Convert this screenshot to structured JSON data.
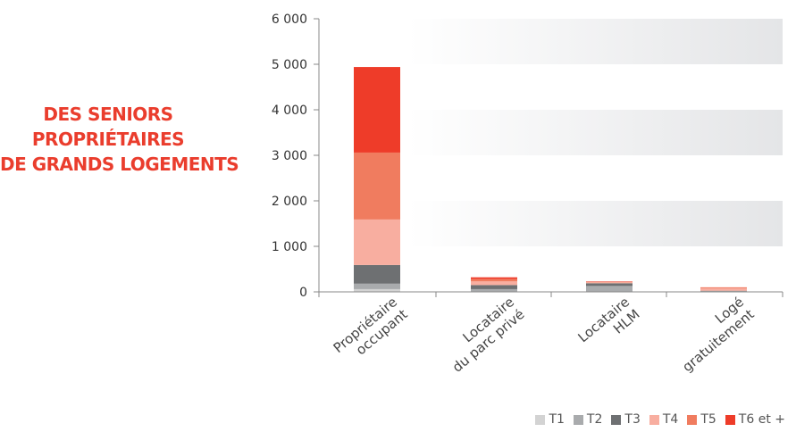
{
  "headline": {
    "line1": "DES SENIORS",
    "line2": "PROPRIÉTAIRES",
    "line3": "DE GRANDS LOGEMENTS"
  },
  "colors": {
    "accent": "#ea3d2d",
    "T1": "#d3d3d3",
    "T2": "#a9abad",
    "T3": "#6e7072",
    "T4": "#f8aea0",
    "T5": "#f07c5f",
    "T6": "#ee3c29"
  },
  "chart_data": {
    "type": "bar",
    "stacked": true,
    "categories": [
      [
        "Propriétaire",
        "occupant"
      ],
      [
        "Locataire",
        "du parc privé"
      ],
      [
        "Locataire",
        "HLM"
      ],
      [
        "Logé",
        "gratuitement"
      ]
    ],
    "series": [
      {
        "name": "T1",
        "color": "#d3d3d3",
        "values": [
          60,
          10,
          10,
          5
        ]
      },
      {
        "name": "T2",
        "color": "#a9abad",
        "values": [
          120,
          50,
          120,
          10
        ]
      },
      {
        "name": "T3",
        "color": "#6e7072",
        "values": [
          410,
          90,
          60,
          10
        ]
      },
      {
        "name": "T4",
        "color": "#f8aea0",
        "values": [
          1000,
          80,
          20,
          50
        ]
      },
      {
        "name": "T5",
        "color": "#f07c5f",
        "values": [
          1470,
          50,
          10,
          20
        ]
      },
      {
        "name": "T6 et +",
        "color": "#ee3c29",
        "values": [
          1880,
          40,
          10,
          5
        ]
      }
    ],
    "ylim": [
      0,
      6000
    ],
    "yticks": [
      0,
      1000,
      2000,
      3000,
      4000,
      5000,
      6000
    ],
    "ytick_labels": [
      "0",
      "1 000",
      "2 000",
      "3 000",
      "4 000",
      "5 000",
      "6 000"
    ],
    "legend_position": "bottom-right",
    "grid": "alternating bands",
    "title": "",
    "xlabel": "",
    "ylabel": ""
  }
}
